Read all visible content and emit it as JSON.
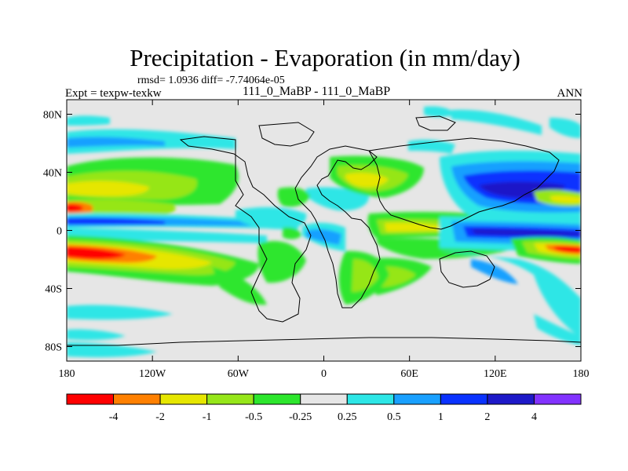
{
  "header": {
    "title": "Precipitation - Evaporation (in mm/day)",
    "stats": "rmsd= 1.0936 diff= -7.74064e-05",
    "expt": "Expt = texpw-texkw",
    "case": "111_0_MaBP - 111_0_MaBP",
    "season": "ANN"
  },
  "map": {
    "lon_range": [
      -180,
      180
    ],
    "lat_range": [
      -90,
      90
    ],
    "lat_ticks": [
      {
        "value": 80,
        "label": "80N"
      },
      {
        "value": 40,
        "label": "40N"
      },
      {
        "value": 0,
        "label": "0"
      },
      {
        "value": -40,
        "label": "40S"
      },
      {
        "value": -80,
        "label": "80S"
      }
    ],
    "lon_ticks": [
      {
        "value": -180,
        "label": "180"
      },
      {
        "value": -120,
        "label": "120W"
      },
      {
        "value": -60,
        "label": "60W"
      },
      {
        "value": 0,
        "label": "0"
      },
      {
        "value": 60,
        "label": "60E"
      },
      {
        "value": 120,
        "label": "120E"
      },
      {
        "value": 180,
        "label": "180"
      }
    ]
  },
  "colorbar": {
    "colors": [
      "#ff0000",
      "#ff8000",
      "#e6e600",
      "#96e619",
      "#2de62d",
      "#e6e6e6",
      "#2de6e6",
      "#19a0ff",
      "#0a32ff",
      "#1e19c8",
      "#8232ff"
    ],
    "labels": [
      "-4",
      "-2",
      "-1",
      "-0.5",
      "-0.25",
      "0.25",
      "0.5",
      "1",
      "2",
      "4"
    ]
  }
}
